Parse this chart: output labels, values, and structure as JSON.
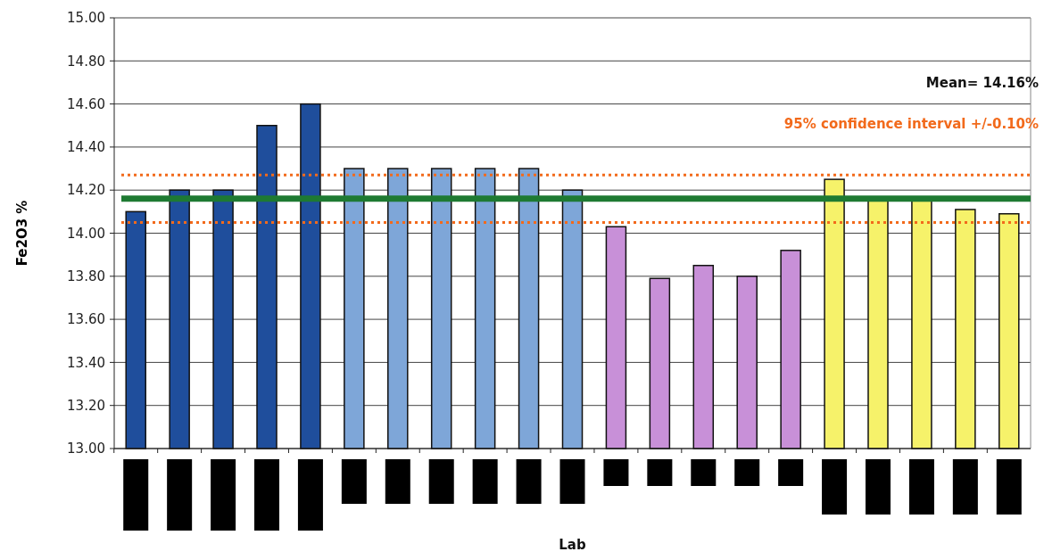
{
  "chart_data": {
    "type": "bar",
    "ylabel": "Fe2O3 %",
    "annotations": [
      "Mean= 14.16%",
      "95% confidence interval +/-0.10%",
      "Lab"
    ],
    "categories": [
      null,
      null,
      null,
      null,
      null,
      null,
      null,
      null,
      null,
      null,
      null,
      null,
      null,
      null,
      null,
      null,
      null,
      null,
      null,
      null,
      null
    ],
    "values": [
      14.1,
      14.2,
      14.2,
      14.5,
      14.6,
      14.3,
      14.3,
      14.3,
      14.3,
      14.3,
      14.2,
      14.03,
      13.79,
      13.85,
      13.8,
      13.92,
      14.25,
      14.15,
      14.15,
      14.11,
      14.09
    ],
    "colors": [
      "#1f4e9c",
      "#1f4e9c",
      "#1f4e9c",
      "#1f4e9c",
      "#1f4e9c",
      "#7ea6d8",
      "#7ea6d8",
      "#7ea6d8",
      "#7ea6d8",
      "#7ea6d8",
      "#7ea6d8",
      "#c890d8",
      "#c890d8",
      "#c890d8",
      "#c890d8",
      "#c890d8",
      "#f6f26a",
      "#f6f26a",
      "#f6f26a",
      "#f6f26a",
      "#f6f26a"
    ],
    "ylim": [
      13,
      15
    ],
    "yticks": [
      {
        "value": 13,
        "label": "13.00"
      },
      {
        "value": 13.2,
        "label": "13.20"
      },
      {
        "value": 13.4,
        "label": "13.40"
      },
      {
        "value": 13.6,
        "label": "13.60"
      },
      {
        "value": 13.8,
        "label": "13.80"
      },
      {
        "value": 14,
        "label": "14.00"
      },
      {
        "value": 14.2,
        "label": "14.20"
      },
      {
        "value": 14.4,
        "label": "14.40"
      },
      {
        "value": 14.6,
        "label": "14.60"
      },
      {
        "value": 14.8,
        "label": "14.80"
      },
      {
        "value": 15,
        "label": "15.00"
      }
    ],
    "grid": "y",
    "ref_lines": [
      {
        "axis": "y",
        "value": 14.16,
        "color": "#1e7a32",
        "line_style": "solid"
      },
      {
        "axis": "y",
        "value": 14.27,
        "color": "#f26a1b",
        "line_style": "dotted"
      },
      {
        "axis": "y",
        "value": 14.05,
        "color": "#f26a1b",
        "line_style": "dotted"
      }
    ]
  }
}
